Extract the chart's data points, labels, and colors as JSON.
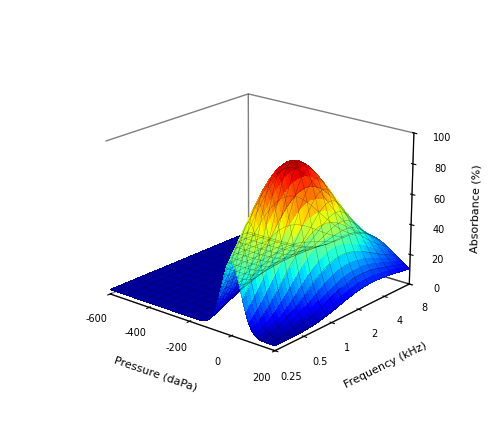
{
  "pressure_min": -600,
  "pressure_max": 200,
  "pressure_ticks": [
    -600,
    -400,
    -200,
    0,
    200
  ],
  "frequency_ticks": [
    0.25,
    0.5,
    1,
    2,
    4,
    8
  ],
  "frequency_min": 0.25,
  "frequency_max": 8,
  "absorbance_min": 0,
  "absorbance_max": 100,
  "absorbance_ticks": [
    0,
    20,
    40,
    60,
    80,
    100
  ],
  "xlabel": "Pressure (daPa)",
  "ylabel": "Frequency (kHz)",
  "zlabel": "Absorbance (%)",
  "elev": 20,
  "azim": -50,
  "n_pressure": 60,
  "n_frequency": 50
}
